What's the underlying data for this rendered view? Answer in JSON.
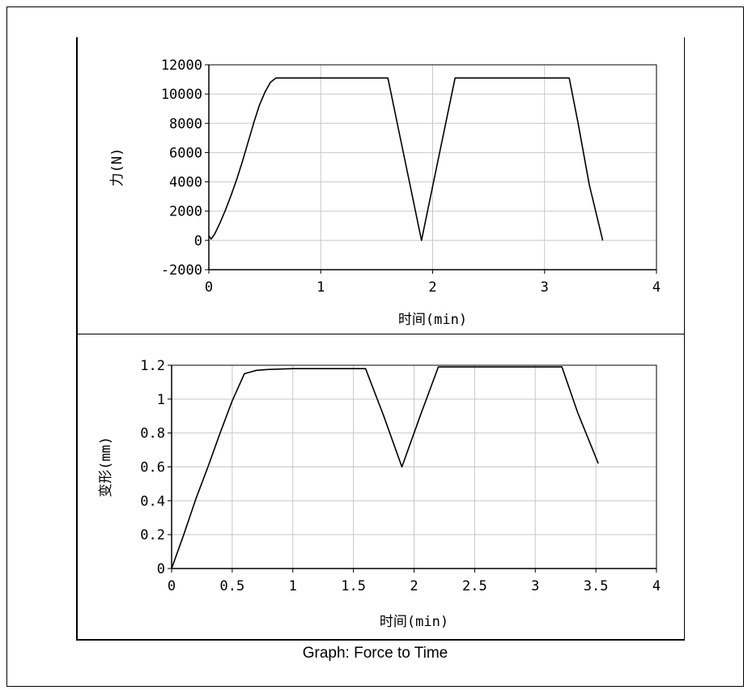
{
  "caption": "Graph: Force to Time",
  "chart_data": [
    {
      "type": "line",
      "title": "",
      "xlabel": "时间(min)",
      "ylabel": "力(N)",
      "xlim": [
        0,
        4
      ],
      "ylim": [
        -2000,
        12000
      ],
      "xticks": [
        0,
        1,
        2,
        3,
        4
      ],
      "xtick_labels": [
        "0",
        "1",
        "2",
        "3",
        "4"
      ],
      "yticks": [
        -2000,
        0,
        2000,
        4000,
        6000,
        8000,
        10000,
        12000
      ],
      "ytick_labels": [
        "-2000",
        "0",
        "2000",
        "4000",
        "6000",
        "8000",
        "10000",
        "12000"
      ],
      "grid": true,
      "series": [
        {
          "x": [
            0,
            0.02,
            0.05,
            0.1,
            0.15,
            0.2,
            0.25,
            0.3,
            0.35,
            0.4,
            0.45,
            0.5,
            0.55,
            0.6,
            1.0,
            1.6,
            1.7,
            1.8,
            1.9,
            2.0,
            2.2,
            2.6,
            3.22,
            3.3,
            3.4,
            3.52
          ],
          "y": [
            300,
            100,
            400,
            1200,
            2100,
            3100,
            4200,
            5400,
            6700,
            8000,
            9200,
            10100,
            10800,
            11100,
            11100,
            11100,
            7400,
            3700,
            0,
            3700,
            11100,
            11100,
            11100,
            8000,
            3800,
            0
          ]
        }
      ]
    },
    {
      "type": "line",
      "title": "",
      "xlabel": "时间(min)",
      "ylabel": "变形(mm)",
      "xlim": [
        0,
        4
      ],
      "ylim": [
        0,
        1.2
      ],
      "xticks": [
        0,
        0.5,
        1,
        1.5,
        2,
        2.5,
        3,
        3.5,
        4
      ],
      "xtick_labels": [
        "0",
        "0.5",
        "1",
        "1.5",
        "2",
        "2.5",
        "3",
        "3.5",
        "4"
      ],
      "yticks": [
        0,
        0.2,
        0.4,
        0.6,
        0.8,
        1,
        1.2
      ],
      "ytick_labels": [
        "0",
        "0.2",
        "0.4",
        "0.6",
        "0.8",
        "1",
        "1.2"
      ],
      "grid": true,
      "series": [
        {
          "x": [
            0,
            0.1,
            0.2,
            0.3,
            0.4,
            0.5,
            0.6,
            0.65,
            0.7,
            0.8,
            1.0,
            1.6,
            1.75,
            1.9,
            2.05,
            2.2,
            2.5,
            3.22,
            3.35,
            3.52
          ],
          "y": [
            0,
            0.2,
            0.41,
            0.6,
            0.8,
            0.99,
            1.15,
            1.16,
            1.17,
            1.175,
            1.18,
            1.18,
            0.9,
            0.6,
            0.9,
            1.19,
            1.19,
            1.19,
            0.92,
            0.62
          ]
        }
      ]
    }
  ]
}
